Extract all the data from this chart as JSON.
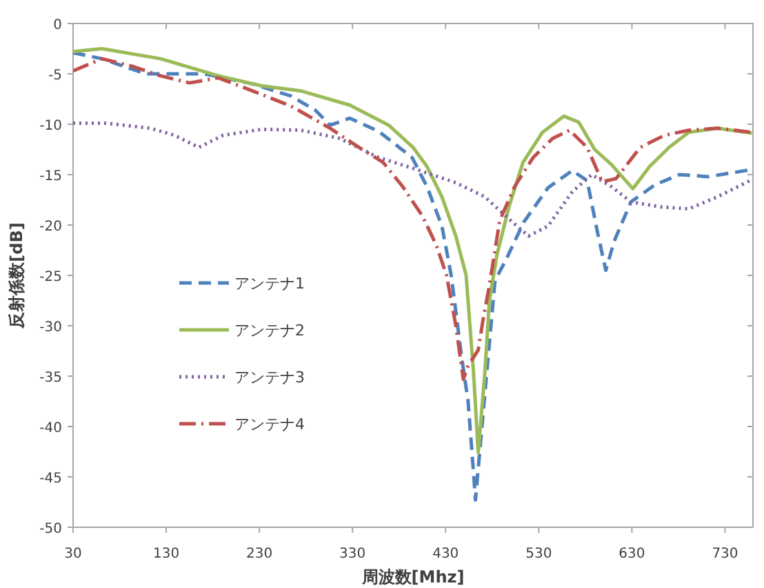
{
  "chart_data": {
    "type": "line",
    "xlabel": "周波数[Mhz]",
    "ylabel": "反射係数[dB]",
    "xlim": [
      30,
      760
    ],
    "xticks": [
      30,
      130,
      230,
      330,
      430,
      530,
      630,
      730
    ],
    "ylim": [
      -50,
      0
    ],
    "yticks": [
      -50,
      -45,
      -40,
      -35,
      -30,
      -25,
      -20,
      -15,
      -10,
      -5,
      0
    ],
    "grid": false,
    "legend": "left",
    "marker": "none",
    "series": [
      {
        "name": "アンテナ1",
        "color": "#4f81bd",
        "line_style": "dashed",
        "x": [
          30,
          61,
          108,
          171,
          223,
          264,
          290,
          306,
          327,
          358,
          394,
          410,
          426,
          436,
          447,
          454,
          460,
          462,
          483,
          494,
          514,
          540,
          566,
          582,
          593,
          602,
          611,
          629,
          655,
          681,
          712,
          759
        ],
        "values": [
          -2.9,
          -3.5,
          -5,
          -5,
          -6,
          -7.2,
          -8.6,
          -10.1,
          -9.4,
          -10.7,
          -13.3,
          -16.2,
          -20.1,
          -25,
          -33,
          -37.4,
          -44.6,
          -47.3,
          -25.5,
          -23.6,
          -19.7,
          -16.3,
          -14.6,
          -15.6,
          -20.7,
          -24.5,
          -21.6,
          -17.7,
          -16,
          -15,
          -15.2,
          -14.5
        ]
      },
      {
        "name": "アンテナ2",
        "color": "#9bbb59",
        "line_style": "solid",
        "x": [
          30,
          61,
          124,
          186,
          233,
          275,
          327,
          369,
          395,
          410,
          426,
          441,
          452,
          460,
          465,
          472,
          477,
          485,
          498,
          513,
          534,
          557,
          573,
          590,
          608,
          631,
          649,
          670,
          691,
          722,
          759
        ],
        "values": [
          -2.8,
          -2.5,
          -3.5,
          -5.2,
          -6.2,
          -6.7,
          -8.1,
          -10.1,
          -12.3,
          -14.2,
          -17.2,
          -21.1,
          -25,
          -34.7,
          -42.6,
          -34.8,
          -27.5,
          -23,
          -18.2,
          -13.8,
          -10.8,
          -9.2,
          -9.8,
          -12.5,
          -14,
          -16.4,
          -14.2,
          -12.3,
          -10.8,
          -10.4,
          -10.9
        ]
      },
      {
        "name": "アンテナ3",
        "color": "#8064a2",
        "line_style": "dotted",
        "x": [
          30,
          66,
          113,
          139,
          165,
          191,
          233,
          275,
          316,
          358,
          399,
          441,
          472,
          498,
          519,
          540,
          566,
          587,
          608,
          629,
          660,
          691,
          722,
          759
        ],
        "values": [
          -9.9,
          -9.9,
          -10.4,
          -11.1,
          -12.3,
          -11.1,
          -10.5,
          -10.6,
          -11.4,
          -13.3,
          -14.5,
          -15.8,
          -17.2,
          -19.4,
          -21.1,
          -20.1,
          -16.7,
          -15,
          -16.2,
          -17.7,
          -18.2,
          -18.4,
          -17.2,
          -15.5
        ]
      },
      {
        "name": "アンテナ4",
        "color": "#c0504d",
        "line_style": "dashdot",
        "x": [
          30,
          61,
          92,
          124,
          155,
          186,
          223,
          264,
          306,
          337,
          363,
          384,
          405,
          420,
          431,
          441,
          449,
          454,
          465,
          470,
          477,
          488,
          504,
          524,
          545,
          563,
          582,
          598,
          613,
          639,
          665,
          691,
          722,
          759
        ],
        "values": [
          -4.7,
          -3.5,
          -4.2,
          -5.2,
          -5.9,
          -5.4,
          -6.7,
          -8.2,
          -10.4,
          -12.3,
          -13.8,
          -16.2,
          -19.1,
          -22,
          -25,
          -30,
          -35.3,
          -34,
          -32.4,
          -29.5,
          -26,
          -19.6,
          -16.2,
          -13.3,
          -11.4,
          -10.6,
          -12.3,
          -15.7,
          -15.4,
          -12.3,
          -11.1,
          -10.6,
          -10.4,
          -10.8
        ]
      }
    ]
  }
}
